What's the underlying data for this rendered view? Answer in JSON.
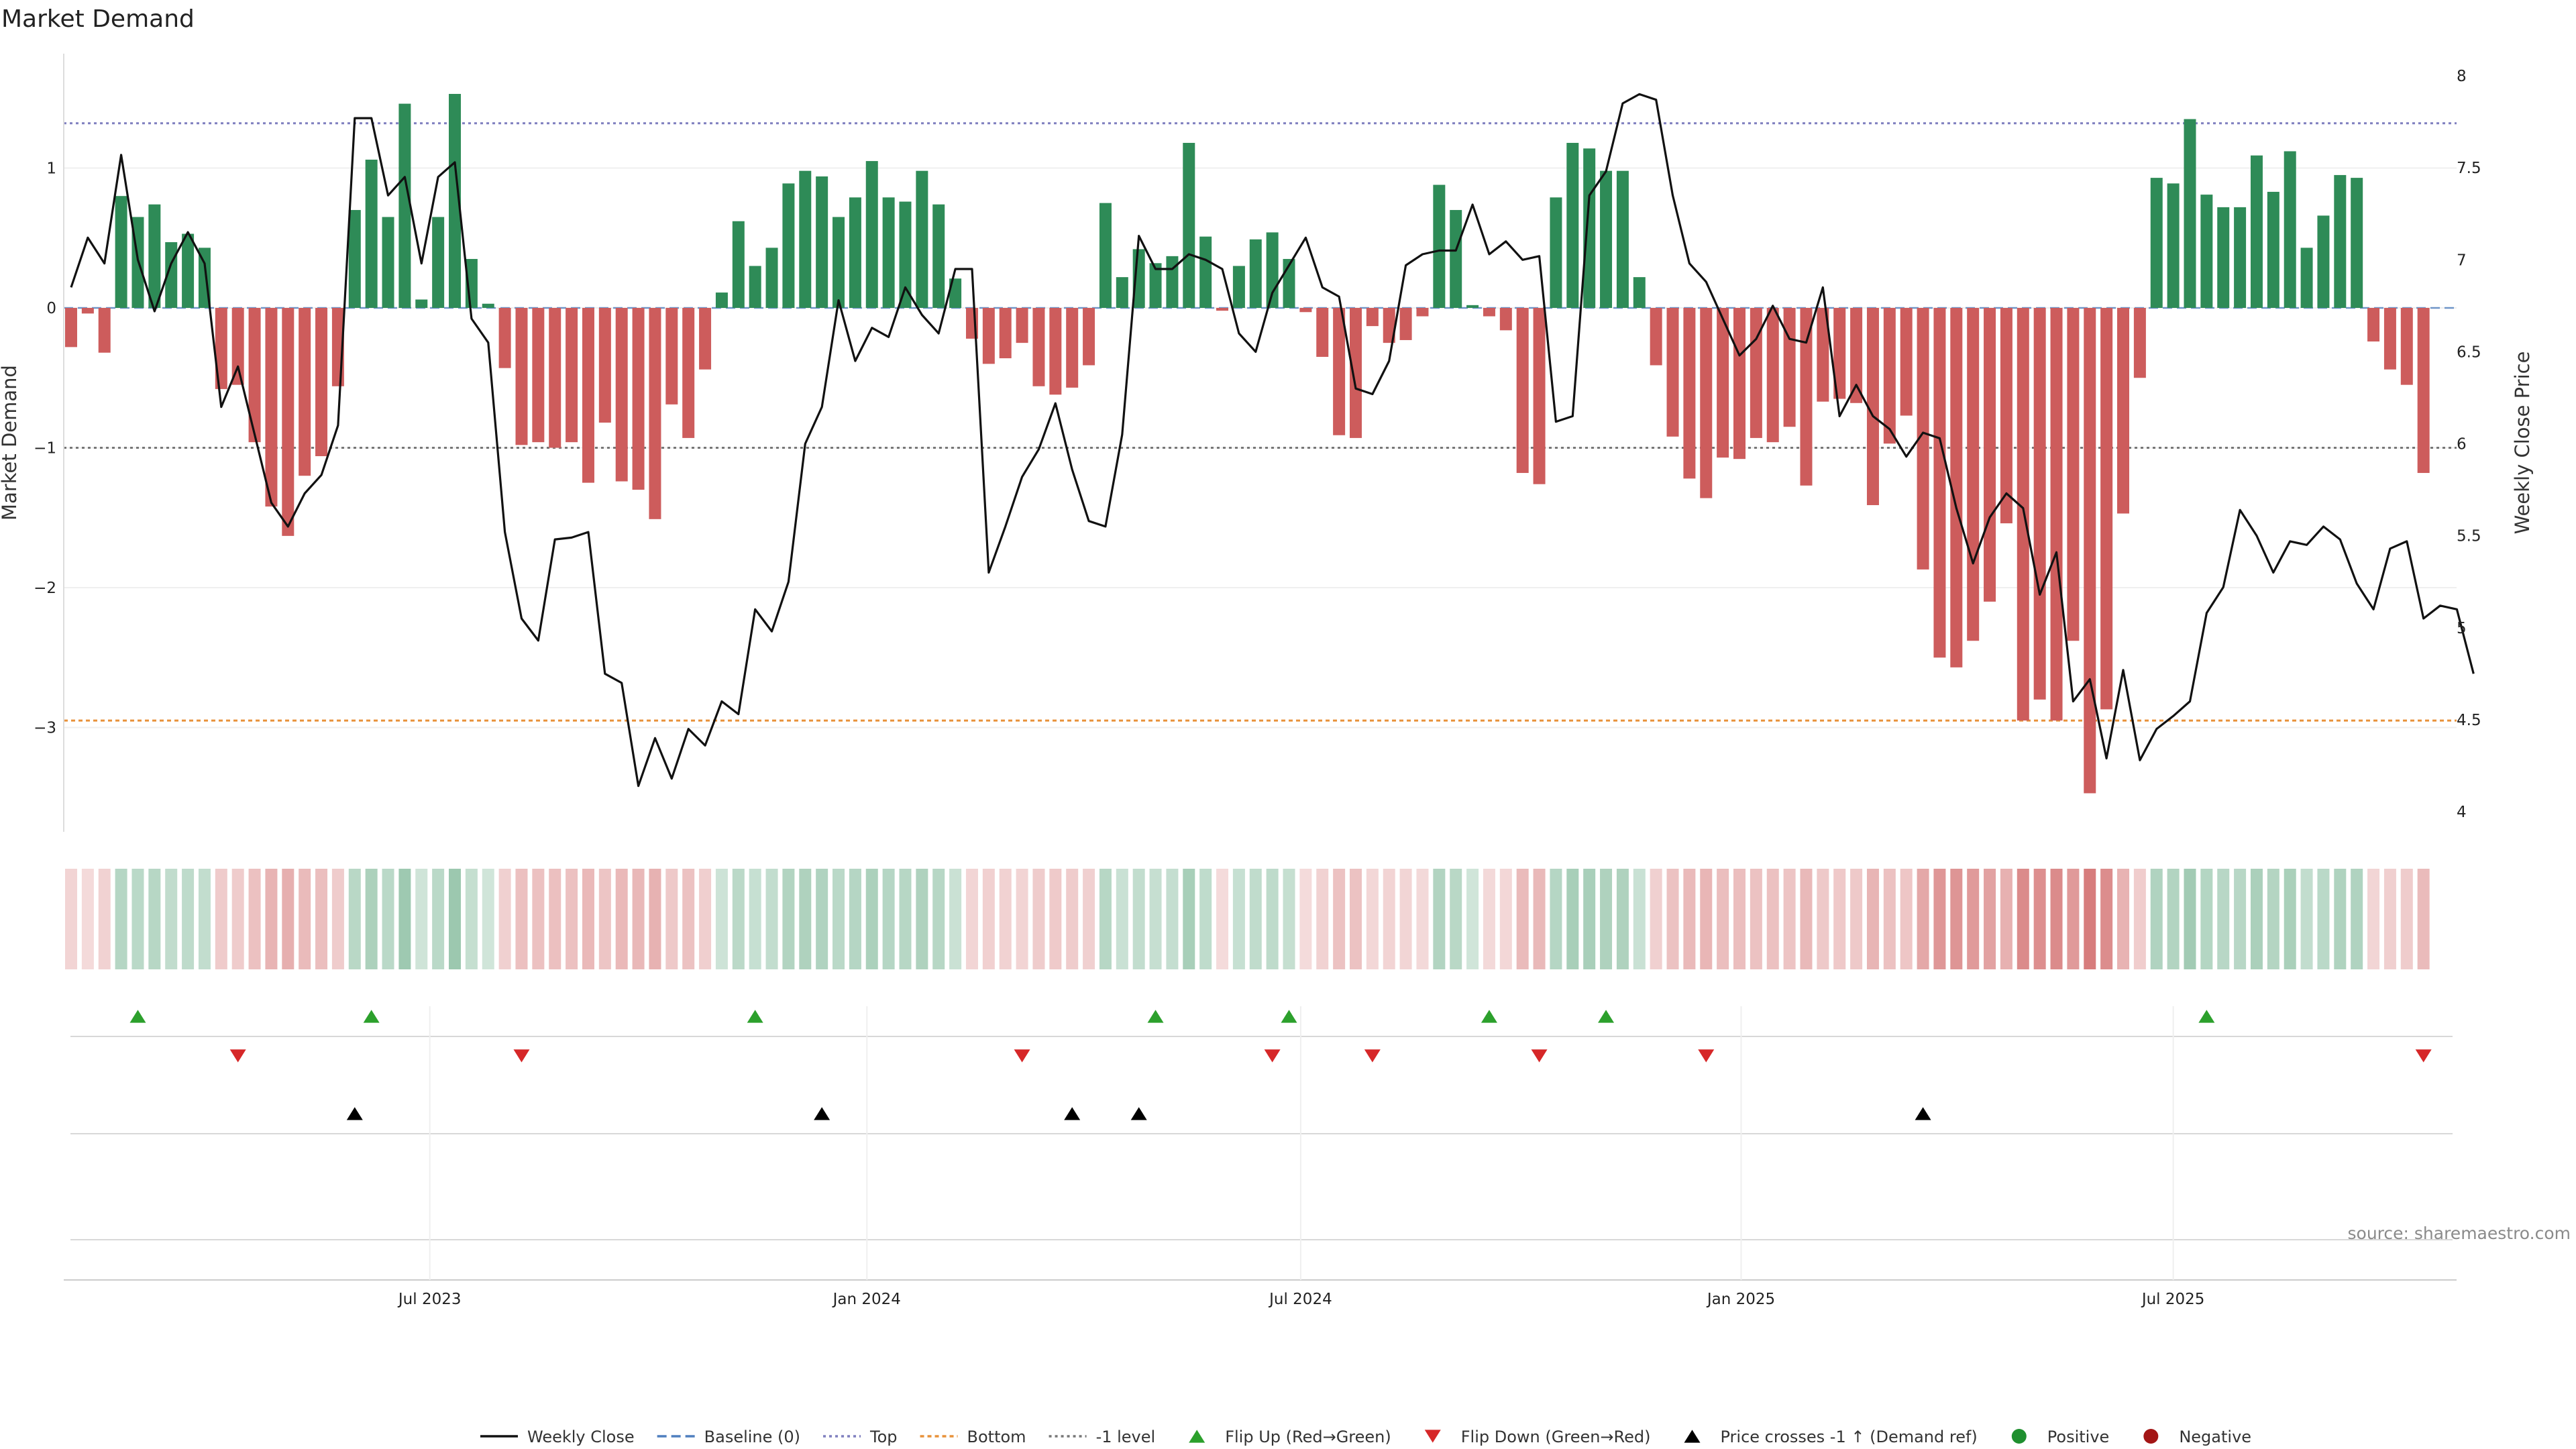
{
  "chart_data": {
    "type": "bar",
    "title": "Market Demand",
    "ylabel": "Market Demand",
    "y2label": "Weekly Close Price",
    "source": "source: sharemaestro.com",
    "ylim": [
      -3.75,
      1.8
    ],
    "y2lim": [
      3.95,
      8.1
    ],
    "yticks": [
      1,
      0,
      -1,
      -2,
      -3
    ],
    "yticklabels": [
      "1",
      "0",
      "−1",
      "−2",
      "−3"
    ],
    "y2ticks": [
      8,
      7.5,
      7,
      6.5,
      6,
      5.5,
      5,
      4.5,
      4
    ],
    "y2ticklabels": [
      "8",
      "7.5",
      "7",
      "6.5",
      "6",
      "5.5",
      "5",
      "4.5",
      "4"
    ],
    "xticks": [
      {
        "week": 21.5,
        "label": "Jul 2023"
      },
      {
        "week": 47.7,
        "label": "Jan 2024"
      },
      {
        "week": 73.7,
        "label": "Jul 2024"
      },
      {
        "week": 100.1,
        "label": "Jan 2025"
      },
      {
        "week": 126,
        "label": "Jul 2025"
      }
    ],
    "lines": {
      "top": 1.32,
      "bottom": -2.95,
      "minus_one": -1.0,
      "baseline": 0
    },
    "demand": [
      -0.28,
      -0.04,
      -0.32,
      0.8,
      0.65,
      0.74,
      0.47,
      0.53,
      0.43,
      -0.58,
      -0.55,
      -0.96,
      -1.42,
      -1.63,
      -1.2,
      -1.06,
      -0.56,
      0.7,
      1.06,
      0.65,
      1.46,
      0.06,
      0.65,
      1.53,
      0.35,
      0.03,
      -0.43,
      -0.98,
      -0.96,
      -1.0,
      -0.96,
      -1.25,
      -0.82,
      -1.24,
      -1.3,
      -1.51,
      -0.69,
      -0.93,
      -0.44,
      0.11,
      0.62,
      0.3,
      0.43,
      0.89,
      0.98,
      0.94,
      0.65,
      0.79,
      1.05,
      0.79,
      0.76,
      0.98,
      0.74,
      0.21,
      -0.22,
      -0.4,
      -0.36,
      -0.25,
      -0.56,
      -0.62,
      -0.57,
      -0.41,
      0.75,
      0.22,
      0.42,
      0.32,
      0.37,
      1.18,
      0.51,
      -0.02,
      0.3,
      0.49,
      0.54,
      0.35,
      -0.03,
      -0.35,
      -0.91,
      -0.93,
      -0.13,
      -0.25,
      -0.23,
      -0.06,
      0.88,
      0.7,
      0.02,
      -0.06,
      -0.16,
      -1.18,
      -1.26,
      0.79,
      1.18,
      1.14,
      0.98,
      0.98,
      0.22,
      -0.41,
      -0.92,
      -1.22,
      -1.36,
      -1.07,
      -1.08,
      -0.93,
      -0.96,
      -0.85,
      -1.27,
      -0.67,
      -0.65,
      -0.68,
      -1.41,
      -0.97,
      -0.77,
      -1.87,
      -2.5,
      -2.57,
      -2.38,
      -2.1,
      -1.54,
      -2.95,
      -2.8,
      -2.95,
      -2.38,
      -3.47,
      -2.87,
      -1.47,
      -0.5,
      0.93,
      0.89,
      1.35,
      0.81,
      0.72,
      0.72,
      1.09,
      0.83,
      1.12,
      0.43,
      0.66,
      0.95,
      0.93,
      -0.24,
      -0.44,
      -0.55,
      -1.18
    ],
    "price": [
      6.85,
      7.12,
      6.98,
      7.57,
      7.0,
      6.72,
      6.98,
      7.15,
      6.98,
      6.2,
      6.42,
      6.05,
      5.68,
      5.55,
      5.73,
      5.83,
      6.1,
      7.77,
      7.77,
      7.35,
      7.45,
      6.98,
      7.45,
      7.53,
      6.68,
      6.55,
      5.52,
      5.05,
      4.93,
      5.48,
      5.49,
      5.52,
      4.75,
      4.7,
      4.14,
      4.4,
      4.18,
      4.45,
      4.36,
      4.6,
      4.53,
      5.1,
      4.98,
      5.25,
      6.0,
      6.2,
      6.78,
      6.45,
      6.63,
      6.58,
      6.85,
      6.7,
      6.6,
      6.95,
      6.95,
      5.3,
      5.55,
      5.82,
      5.97,
      6.22,
      5.86,
      5.58,
      5.55,
      6.05,
      7.13,
      6.95,
      6.95,
      7.03,
      7.0,
      6.95,
      6.6,
      6.5,
      6.82,
      6.97,
      7.12,
      6.85,
      6.8,
      6.3,
      6.27,
      6.45,
      6.97,
      7.03,
      7.05,
      7.05,
      7.3,
      7.03,
      7.1,
      7.0,
      7.02,
      6.12,
      6.15,
      7.35,
      7.48,
      7.85,
      7.9,
      7.87,
      7.35,
      6.98,
      6.88,
      6.68,
      6.48,
      6.57,
      6.75,
      6.57,
      6.55,
      6.85,
      6.15,
      6.32,
      6.15,
      6.08,
      5.93,
      6.06,
      6.03,
      5.65,
      5.35,
      5.6,
      5.73,
      5.65,
      5.18,
      5.41,
      4.6,
      4.72,
      4.29,
      4.77,
      4.28,
      4.45,
      4.52,
      4.6,
      5.08,
      5.22,
      5.64,
      5.5,
      5.3,
      5.47,
      5.45,
      5.55,
      5.48,
      5.24,
      5.1,
      5.43,
      5.47,
      5.05,
      5.12,
      5.1,
      4.75
    ],
    "flip_up_weeks": [
      4,
      18,
      41,
      65,
      73,
      85,
      92,
      128
    ],
    "flip_down_weeks": [
      10,
      27,
      57,
      72,
      78,
      88,
      98,
      141
    ],
    "price_cross_weeks": [
      17,
      45,
      60,
      64,
      111
    ],
    "colors": {
      "positive": "#2e8b57",
      "negative": "#cd5c5c",
      "price_line": "#111111",
      "top_line": "#7f7fbf",
      "bottom_line": "#e8923a",
      "minus_one_line": "#777777",
      "baseline": "#4f7fbf",
      "flip_up": "#2ca02c",
      "flip_down": "#d62728",
      "price_cross": "#000000",
      "positive_dot": "#1f8f2f",
      "negative_dot": "#a31515"
    },
    "legend": {
      "placement": "bottom-center",
      "items": [
        {
          "label": "Weekly Close",
          "kind": "line"
        },
        {
          "label": "Baseline (0)",
          "kind": "dash"
        },
        {
          "label": "Top",
          "kind": "dot-top"
        },
        {
          "label": "Bottom",
          "kind": "dot-bottom"
        },
        {
          "label": "-1 level",
          "kind": "dot-minus"
        },
        {
          "label": "Flip Up (Red→Green)",
          "kind": "tri-up"
        },
        {
          "label": "Flip Down (Green→Red)",
          "kind": "tri-down"
        },
        {
          "label": "Price crosses -1 ↑ (Demand ref)",
          "kind": "tri-black"
        },
        {
          "label": "Positive",
          "kind": "dot-pos"
        },
        {
          "label": "Negative",
          "kind": "dot-neg"
        }
      ]
    }
  }
}
